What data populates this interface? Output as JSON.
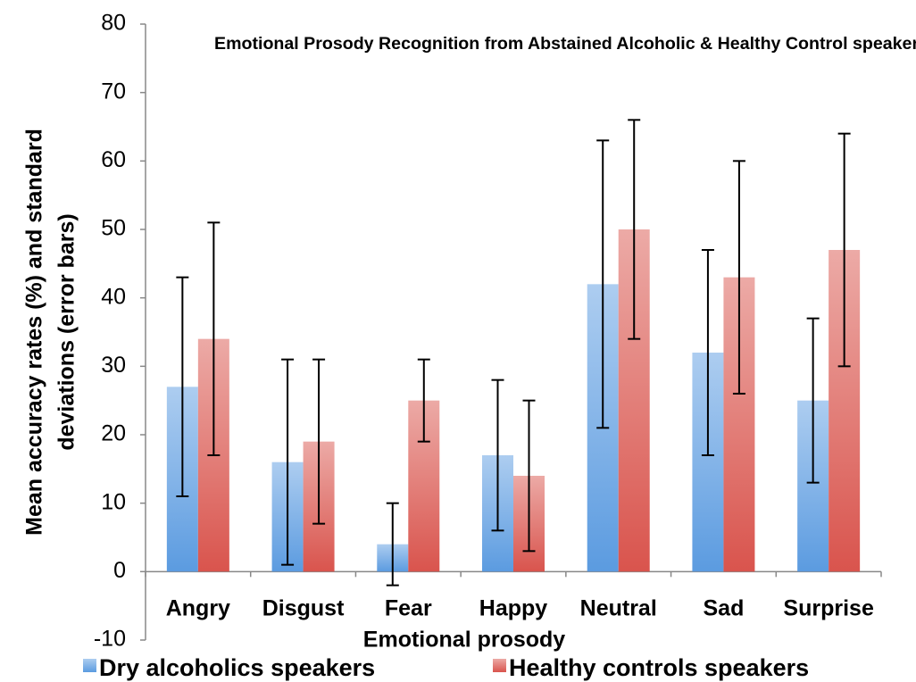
{
  "chart_data": {
    "type": "bar",
    "title": "Emotional Prosody Recognition from Abstained  Alcoholic & Healthy Control speakers",
    "x_label": "Emotional prosody",
    "y_label": [
      "Mean accuracy rates (%) and standard",
      "deviations (error bars)"
    ],
    "categories": [
      "Angry",
      "Disgust",
      "Fear",
      "Happy",
      "Neutral",
      "Sad",
      "Surprise"
    ],
    "series": [
      {
        "name": "Dry alcoholics speakers",
        "color": "#5b9be0",
        "values": [
          27,
          16,
          4,
          17,
          42,
          32,
          25
        ],
        "errors": [
          16,
          15,
          6,
          11,
          21,
          15,
          12
        ]
      },
      {
        "name": "Healthy controls speakers",
        "color": "#d9544d",
        "values": [
          34,
          19,
          25,
          14,
          50,
          43,
          47
        ],
        "errors": [
          17,
          12,
          6,
          11,
          16,
          17,
          17
        ]
      }
    ],
    "ylim": [
      -10,
      80
    ],
    "yticks": [
      -10,
      0,
      10,
      20,
      30,
      40,
      50,
      60,
      70,
      80
    ],
    "legend": "bottom",
    "grid": false
  }
}
